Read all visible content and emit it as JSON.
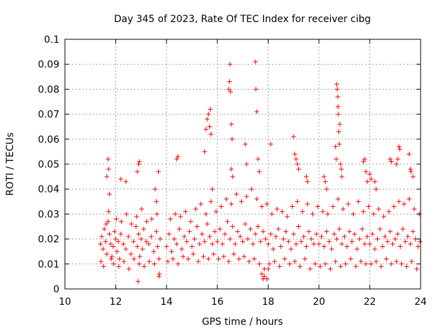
{
  "chart_data": {
    "type": "scatter",
    "title": "Day 345 of 2023, Rate Of TEC Index for receiver cibg",
    "xlabel": "GPS time / hours",
    "ylabel": "ROTI / TECUs",
    "xlim": [
      10,
      24
    ],
    "ylim": [
      0,
      0.1
    ],
    "x_ticks": [
      10,
      12,
      14,
      16,
      18,
      20,
      22,
      24
    ],
    "x_tick_labels": [
      "10",
      "12",
      "14",
      "16",
      "18",
      "20",
      "22",
      "24"
    ],
    "y_ticks": [
      0,
      0.01,
      0.02,
      0.03,
      0.04,
      0.05,
      0.06,
      0.07,
      0.08,
      0.09,
      0.1
    ],
    "y_tick_labels": [
      "0",
      "0.01",
      "0.02",
      "0.03",
      "0.04",
      "0.05",
      "0.06",
      "0.07",
      "0.08",
      "0.09",
      "0.1"
    ],
    "grid": true,
    "marker": "+",
    "color": "#ff0000",
    "series": [
      {
        "name": "ROTI",
        "x": [
          11.4,
          11.45,
          11.5,
          11.55,
          11.6,
          11.65,
          11.7,
          11.75,
          11.8,
          11.85,
          11.9,
          11.95,
          12.0,
          12.05,
          12.1,
          12.15,
          12.2,
          12.3,
          12.4,
          12.5,
          12.6,
          12.7,
          12.8,
          12.85,
          12.9,
          12.95,
          13.0,
          13.05,
          13.1,
          13.2,
          13.3,
          13.4,
          13.5,
          13.6,
          13.65,
          13.7,
          13.75,
          11.42,
          11.52,
          11.62,
          11.72,
          11.82,
          11.92,
          12.02,
          12.12,
          12.22,
          12.32,
          12.42,
          12.52,
          12.62,
          12.72,
          12.82,
          12.92,
          13.02,
          13.12,
          13.22,
          13.32,
          13.42,
          13.52,
          13.62,
          13.72,
          11.65,
          11.7,
          11.72,
          11.75,
          12.2,
          12.4,
          12.85,
          12.9,
          12.93,
          13.55,
          13.6,
          12.88,
          13.68,
          13.7,
          14.0,
          14.1,
          14.2,
          14.3,
          14.4,
          14.5,
          14.6,
          14.7,
          14.8,
          14.9,
          15.0,
          15.1,
          15.2,
          15.3,
          15.4,
          15.5,
          15.6,
          15.7,
          15.8,
          15.9,
          14.05,
          14.15,
          14.25,
          14.35,
          14.45,
          14.55,
          14.65,
          14.75,
          14.85,
          14.95,
          15.05,
          15.15,
          15.25,
          15.35,
          15.45,
          15.55,
          15.65,
          15.75,
          15.85,
          15.95,
          14.4,
          14.45,
          15.5,
          15.55,
          15.6,
          15.65,
          15.7,
          15.72,
          15.75,
          15.8,
          16.0,
          16.1,
          16.2,
          16.3,
          16.4,
          16.5,
          16.6,
          16.7,
          16.8,
          16.9,
          17.0,
          17.1,
          17.2,
          17.3,
          17.4,
          17.5,
          17.6,
          17.7,
          17.8,
          17.9,
          16.05,
          16.15,
          16.25,
          16.35,
          16.45,
          16.55,
          16.65,
          16.75,
          16.85,
          16.95,
          17.05,
          17.15,
          17.25,
          17.35,
          17.45,
          17.55,
          17.65,
          17.75,
          17.85,
          17.95,
          16.45,
          16.48,
          16.5,
          16.52,
          16.55,
          16.58,
          17.5,
          17.52,
          17.55,
          17.1,
          17.15,
          16.55,
          16.6,
          17.6,
          17.65,
          17.8,
          18.0,
          18.1,
          18.2,
          18.3,
          18.4,
          18.5,
          18.6,
          18.7,
          18.8,
          18.9,
          19.0,
          19.1,
          19.2,
          19.3,
          19.4,
          19.5,
          19.6,
          19.7,
          19.8,
          19.9,
          18.05,
          18.15,
          18.25,
          18.35,
          18.45,
          18.55,
          18.65,
          18.75,
          18.85,
          18.95,
          19.05,
          19.15,
          19.25,
          19.35,
          19.45,
          19.55,
          19.65,
          19.75,
          19.85,
          19.95,
          18.1,
          19.0,
          19.05,
          19.1,
          19.15,
          19.2,
          19.5,
          19.55,
          17.75,
          17.85,
          17.95,
          18.0,
          20.0,
          20.1,
          20.2,
          20.3,
          20.4,
          20.5,
          20.6,
          20.7,
          20.8,
          20.9,
          21.0,
          21.1,
          21.2,
          21.3,
          21.4,
          21.5,
          21.6,
          21.7,
          21.8,
          21.9,
          20.05,
          20.15,
          20.25,
          20.35,
          20.45,
          20.55,
          20.65,
          20.75,
          20.85,
          20.95,
          21.05,
          21.15,
          21.25,
          21.35,
          21.45,
          21.55,
          21.65,
          21.75,
          21.85,
          21.95,
          20.7,
          20.72,
          20.74,
          20.75,
          20.76,
          20.78,
          20.8,
          20.82,
          20.85,
          20.88,
          20.9,
          20.65,
          20.68,
          20.2,
          20.25,
          20.3,
          21.75,
          21.8,
          21.85,
          21.9,
          22.0,
          22.1,
          22.2,
          22.3,
          22.4,
          22.5,
          22.6,
          22.7,
          22.8,
          22.9,
          23.0,
          23.1,
          23.2,
          23.3,
          23.4,
          23.5,
          23.6,
          23.7,
          23.8,
          23.9,
          23.98,
          22.05,
          22.15,
          22.25,
          22.35,
          22.45,
          22.55,
          22.65,
          22.75,
          22.85,
          22.95,
          23.05,
          23.15,
          23.25,
          23.35,
          23.45,
          23.55,
          23.65,
          23.75,
          23.85,
          23.95,
          22.0,
          22.05,
          22.2,
          22.25,
          23.05,
          23.1,
          23.15,
          23.18,
          23.55,
          23.6,
          23.62,
          23.7,
          22.8,
          22.85
        ],
        "y": [
          0.018,
          0.021,
          0.016,
          0.024,
          0.019,
          0.014,
          0.027,
          0.022,
          0.018,
          0.013,
          0.017,
          0.023,
          0.02,
          0.015,
          0.019,
          0.012,
          0.022,
          0.018,
          0.016,
          0.021,
          0.014,
          0.019,
          0.025,
          0.017,
          0.022,
          0.013,
          0.02,
          0.016,
          0.024,
          0.019,
          0.018,
          0.021,
          0.015,
          0.023,
          0.017,
          0.012,
          0.02,
          0.011,
          0.009,
          0.026,
          0.031,
          0.012,
          0.01,
          0.028,
          0.009,
          0.027,
          0.011,
          0.03,
          0.008,
          0.026,
          0.012,
          0.029,
          0.01,
          0.032,
          0.009,
          0.027,
          0.011,
          0.028,
          0.01,
          0.03,
          0.006,
          0.045,
          0.052,
          0.048,
          0.038,
          0.044,
          0.043,
          0.047,
          0.05,
          0.051,
          0.04,
          0.035,
          0.003,
          0.047,
          0.005,
          0.017,
          0.022,
          0.015,
          0.02,
          0.018,
          0.024,
          0.016,
          0.021,
          0.019,
          0.023,
          0.017,
          0.02,
          0.025,
          0.018,
          0.022,
          0.019,
          0.026,
          0.021,
          0.018,
          0.023,
          0.011,
          0.028,
          0.012,
          0.03,
          0.01,
          0.029,
          0.013,
          0.031,
          0.012,
          0.027,
          0.014,
          0.032,
          0.011,
          0.034,
          0.013,
          0.03,
          0.012,
          0.035,
          0.014,
          0.031,
          0.052,
          0.053,
          0.055,
          0.064,
          0.068,
          0.07,
          0.065,
          0.072,
          0.062,
          0.04,
          0.019,
          0.024,
          0.018,
          0.022,
          0.027,
          0.02,
          0.025,
          0.018,
          0.023,
          0.021,
          0.019,
          0.026,
          0.02,
          0.024,
          0.018,
          0.022,
          0.025,
          0.019,
          0.023,
          0.02,
          0.012,
          0.033,
          0.013,
          0.036,
          0.011,
          0.034,
          0.014,
          0.038,
          0.012,
          0.035,
          0.013,
          0.037,
          0.011,
          0.04,
          0.012,
          0.036,
          0.01,
          0.033,
          0.008,
          0.034,
          0.08,
          0.083,
          0.09,
          0.079,
          0.066,
          0.06,
          0.091,
          0.08,
          0.071,
          0.058,
          0.05,
          0.048,
          0.045,
          0.052,
          0.047,
          0.004,
          0.018,
          0.022,
          0.016,
          0.021,
          0.024,
          0.017,
          0.02,
          0.023,
          0.019,
          0.016,
          0.022,
          0.018,
          0.025,
          0.019,
          0.021,
          0.017,
          0.023,
          0.02,
          0.018,
          0.022,
          0.01,
          0.03,
          0.011,
          0.032,
          0.009,
          0.031,
          0.012,
          0.029,
          0.01,
          0.033,
          0.011,
          0.035,
          0.009,
          0.031,
          0.012,
          0.034,
          0.008,
          0.03,
          0.01,
          0.033,
          0.058,
          0.061,
          0.054,
          0.052,
          0.05,
          0.048,
          0.045,
          0.043,
          0.006,
          0.005,
          0.004,
          0.008,
          0.018,
          0.021,
          0.017,
          0.023,
          0.019,
          0.016,
          0.022,
          0.02,
          0.024,
          0.018,
          0.021,
          0.017,
          0.023,
          0.019,
          0.022,
          0.016,
          0.02,
          0.024,
          0.018,
          0.021,
          0.009,
          0.031,
          0.01,
          0.03,
          0.008,
          0.033,
          0.011,
          0.036,
          0.009,
          0.032,
          0.01,
          0.034,
          0.012,
          0.03,
          0.009,
          0.035,
          0.011,
          0.031,
          0.01,
          0.033,
          0.082,
          0.08,
          0.077,
          0.073,
          0.07,
          0.063,
          0.058,
          0.066,
          0.05,
          0.048,
          0.045,
          0.057,
          0.052,
          0.045,
          0.043,
          0.04,
          0.051,
          0.052,
          0.047,
          0.043,
          0.018,
          0.022,
          0.016,
          0.02,
          0.024,
          0.017,
          0.021,
          0.019,
          0.023,
          0.018,
          0.02,
          0.022,
          0.017,
          0.024,
          0.019,
          0.021,
          0.018,
          0.023,
          0.02,
          0.017,
          0.019,
          0.01,
          0.03,
          0.011,
          0.032,
          0.009,
          0.029,
          0.012,
          0.031,
          0.01,
          0.033,
          0.011,
          0.035,
          0.01,
          0.034,
          0.009,
          0.036,
          0.011,
          0.032,
          0.008,
          0.03,
          0.046,
          0.044,
          0.043,
          0.04,
          0.05,
          0.052,
          0.057,
          0.056,
          0.054,
          0.048,
          0.047,
          0.045,
          0.052,
          0.051
        ]
      }
    ]
  }
}
